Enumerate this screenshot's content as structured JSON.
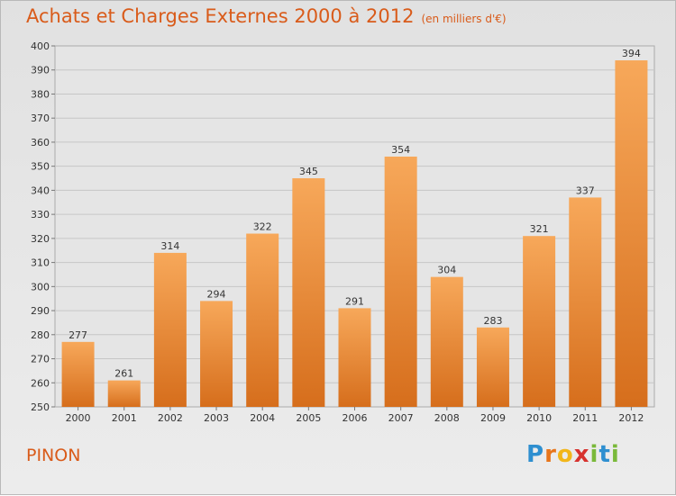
{
  "header": {
    "title": "Achats et Charges Externes 2000 à 2012",
    "unit": "(en milliers d'€)"
  },
  "commune": "PINON",
  "logo": {
    "letters": [
      {
        "ch": "P",
        "color": "#2e8fd0"
      },
      {
        "ch": "r",
        "color": "#e8751a"
      },
      {
        "ch": "o",
        "color": "#f2b61a"
      },
      {
        "ch": "x",
        "color": "#d7322e"
      },
      {
        "ch": "i",
        "color": "#7ab93a"
      },
      {
        "ch": "t",
        "color": "#2e8fd0"
      },
      {
        "ch": "i",
        "color": "#7ab93a"
      }
    ]
  },
  "colors": {
    "bar_top": "#f7a85a",
    "bar_bottom": "#d66e1c",
    "title": "#d95b1a"
  },
  "chart_data": {
    "type": "bar",
    "title": "Achats et Charges Externes 2000 à 2012",
    "ylabel": "",
    "xlabel": "",
    "categories": [
      "2000",
      "2001",
      "2002",
      "2003",
      "2004",
      "2005",
      "2006",
      "2007",
      "2008",
      "2009",
      "2010",
      "2011",
      "2012"
    ],
    "values": [
      277,
      261,
      314,
      294,
      322,
      345,
      291,
      354,
      304,
      283,
      321,
      337,
      394
    ],
    "ylim": [
      250,
      400
    ],
    "yticks": [
      250,
      260,
      270,
      280,
      290,
      300,
      310,
      320,
      330,
      340,
      350,
      360,
      370,
      380,
      390,
      400
    ],
    "grid": true,
    "data_labels": true
  }
}
